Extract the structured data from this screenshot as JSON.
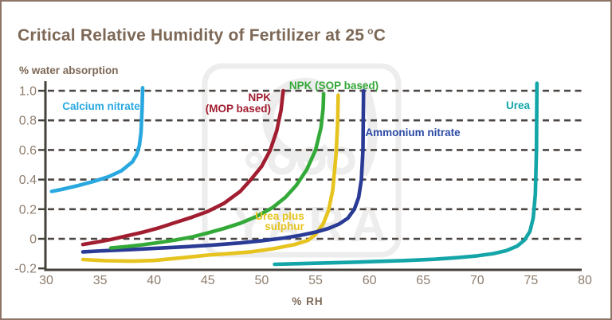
{
  "title": {
    "text": "Critical Relative Humidity of Fertilizer at 25",
    "degree_sup": "o",
    "degree_unit": "C"
  },
  "watermark": {
    "text": "YARA"
  },
  "chart_data": {
    "type": "line",
    "title": "Critical Relative Humidity of Fertilizer at 25 °C",
    "xlabel": "% RH",
    "ylabel": "% water absorption",
    "xlim": [
      30,
      80
    ],
    "ylim": [
      -0.2,
      1.0
    ],
    "grid": "horizontal dashed lines at y = 0 to 1.0 step 0.2",
    "legend_position": "labels next to curves",
    "x_axis": {
      "label": "% RH",
      "ticks": [
        30,
        35,
        40,
        45,
        50,
        55,
        60,
        65,
        70,
        75,
        80
      ]
    },
    "y_axis": {
      "label": "% water absorption",
      "tick_labels": [
        "1.0",
        "0.8",
        "0.6",
        "0.4",
        "0.2",
        "0",
        "-0.2"
      ],
      "tick_values": [
        1.0,
        0.8,
        0.6,
        0.4,
        0.2,
        0,
        -0.2
      ]
    },
    "series": [
      {
        "name": "Urea plus sulphur",
        "color": "#e6c31e",
        "critical_rh": 57,
        "label": {
          "anchor": "middle",
          "lines": [
            [
              "Urea plus",
              349,
              274
            ],
            [
              "sulphur",
              355,
              287
            ]
          ]
        },
        "points": [
          [
            33.4,
            -0.14
          ],
          [
            35.5,
            -0.148
          ],
          [
            38,
            -0.151
          ],
          [
            40,
            -0.146
          ],
          [
            43,
            -0.125
          ],
          [
            45,
            -0.11
          ],
          [
            47,
            -0.1
          ],
          [
            49,
            -0.088
          ],
          [
            51,
            -0.068
          ],
          [
            53,
            -0.04
          ],
          [
            54.3,
            -0.01
          ],
          [
            55,
            0.03
          ],
          [
            55.7,
            0.1
          ],
          [
            56.2,
            0.19
          ],
          [
            56.6,
            0.33
          ],
          [
            56.9,
            0.57
          ],
          [
            57.05,
            0.78
          ],
          [
            57.1,
            0.97
          ]
        ]
      },
      {
        "name": "Ammonium nitrate",
        "color": "#2a3b96",
        "label_color": "#2b4aa5",
        "critical_rh": 59.4,
        "label": {
          "anchor": "middle",
          "lines": [
            [
              "Ammonium nitrate",
              516,
              169
            ]
          ]
        },
        "points": [
          [
            33.4,
            -0.088
          ],
          [
            35.5,
            -0.08
          ],
          [
            38,
            -0.072
          ],
          [
            40.5,
            -0.063
          ],
          [
            43,
            -0.053
          ],
          [
            45.5,
            -0.042
          ],
          [
            48,
            -0.028
          ],
          [
            50,
            -0.013
          ],
          [
            52,
            0.005
          ],
          [
            53.5,
            0.022
          ],
          [
            55,
            0.045
          ],
          [
            56.2,
            0.07
          ],
          [
            57.2,
            0.1
          ],
          [
            58,
            0.14
          ],
          [
            58.6,
            0.2
          ],
          [
            59,
            0.28
          ],
          [
            59.25,
            0.4
          ],
          [
            59.4,
            0.6
          ],
          [
            59.45,
            1.0
          ]
        ]
      },
      {
        "name": "NPK (SOP based)",
        "color": "#33a938",
        "critical_rh": 55.7,
        "label": {
          "anchor": "middle",
          "lines": [
            [
              "NPK (SOP based)",
              417,
              110
            ]
          ]
        },
        "points": [
          [
            36,
            -0.062
          ],
          [
            37.5,
            -0.052
          ],
          [
            39,
            -0.04
          ],
          [
            40.5,
            -0.025
          ],
          [
            42,
            -0.008
          ],
          [
            43.5,
            0.012
          ],
          [
            45,
            0.04
          ],
          [
            46.5,
            0.07
          ],
          [
            48,
            0.105
          ],
          [
            49.5,
            0.15
          ],
          [
            51,
            0.21
          ],
          [
            52.2,
            0.28
          ],
          [
            53.2,
            0.36
          ],
          [
            54.2,
            0.47
          ],
          [
            55,
            0.6
          ],
          [
            55.5,
            0.75
          ],
          [
            55.7,
            0.88
          ],
          [
            55.75,
            0.98
          ]
        ]
      },
      {
        "name": "NPK (MOP based)",
        "color": "#a11e30",
        "critical_rh": 52,
        "label": {
          "anchor": "end",
          "lines": [
            [
              "NPK",
              338,
              125
            ],
            [
              "(MOP based)",
              338,
              139
            ]
          ]
        },
        "points": [
          [
            33.4,
            -0.038
          ],
          [
            34.5,
            -0.025
          ],
          [
            36,
            -0.005
          ],
          [
            37.5,
            0.02
          ],
          [
            39,
            0.045
          ],
          [
            40.5,
            0.075
          ],
          [
            42,
            0.11
          ],
          [
            43.5,
            0.145
          ],
          [
            45,
            0.185
          ],
          [
            46.5,
            0.24
          ],
          [
            48,
            0.32
          ],
          [
            49,
            0.4
          ],
          [
            50,
            0.49
          ],
          [
            50.8,
            0.6
          ],
          [
            51.4,
            0.73
          ],
          [
            51.8,
            0.87
          ],
          [
            52,
            1.0
          ]
        ]
      },
      {
        "name": "Calcium nitrate",
        "color": "#29a8e0",
        "critical_rh": 38.8,
        "label": {
          "anchor": "middle",
          "lines": [
            [
              "Calcium nitrate",
              125,
              136
            ]
          ]
        },
        "points": [
          [
            30.5,
            0.32
          ],
          [
            31.5,
            0.335
          ],
          [
            33,
            0.36
          ],
          [
            34.5,
            0.39
          ],
          [
            35.8,
            0.42
          ],
          [
            37,
            0.46
          ],
          [
            38,
            0.52
          ],
          [
            38.4,
            0.57
          ],
          [
            38.65,
            0.63
          ],
          [
            38.8,
            0.72
          ],
          [
            38.9,
            0.88
          ],
          [
            38.95,
            1.02
          ]
        ]
      },
      {
        "name": "Urea",
        "color": "#13a5a8",
        "critical_rh": 75.5,
        "label": {
          "anchor": "middle",
          "lines": [
            [
              "Urea",
              648,
              135
            ]
          ]
        },
        "points": [
          [
            51.2,
            -0.172
          ],
          [
            53.5,
            -0.168
          ],
          [
            56,
            -0.163
          ],
          [
            58.5,
            -0.158
          ],
          [
            61,
            -0.152
          ],
          [
            63.5,
            -0.146
          ],
          [
            66,
            -0.138
          ],
          [
            68,
            -0.128
          ],
          [
            70,
            -0.115
          ],
          [
            71.5,
            -0.1
          ],
          [
            72.7,
            -0.08
          ],
          [
            73.7,
            -0.05
          ],
          [
            74.4,
            -0.008
          ],
          [
            74.9,
            0.05
          ],
          [
            75.2,
            0.14
          ],
          [
            75.4,
            0.3
          ],
          [
            75.5,
            0.6
          ],
          [
            75.55,
            1.05
          ]
        ]
      }
    ]
  }
}
